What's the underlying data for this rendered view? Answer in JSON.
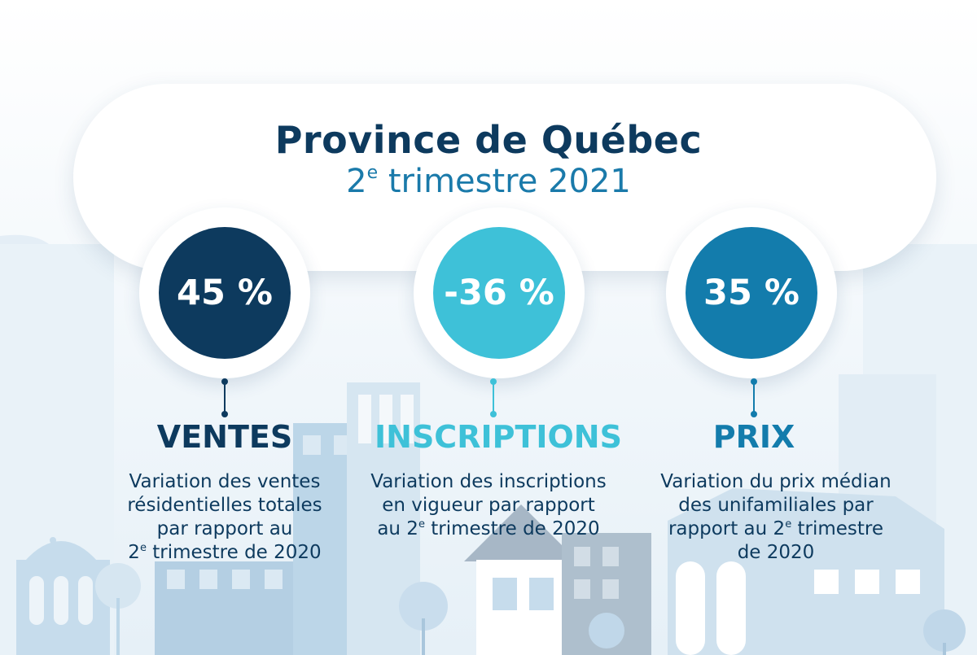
{
  "header": {
    "title": "Province de Québec",
    "subtitle_ordinal": "2",
    "subtitle_sup": "e",
    "subtitle_rest": " trimestre 2021"
  },
  "colors": {
    "navy": "#0d3a5e",
    "cyan": "#3ec1d8",
    "blue": "#137cac",
    "text": "#0d3a5e"
  },
  "indicators": [
    {
      "value": "45 %",
      "label": "VENTES",
      "desc_lines": [
        "Variation des ventes",
        "résidentielles totales",
        "par rapport au"
      ],
      "desc_last_pre": "2",
      "desc_last_sup": "e",
      "desc_last_post": " trimestre de 2020"
    },
    {
      "value": "-36 %",
      "label": "INSCRIPTIONS",
      "desc_lines": [
        "Variation des inscriptions",
        "en vigueur par rapport"
      ],
      "desc_last_pre": "au 2",
      "desc_last_sup": "e",
      "desc_last_post": " trimestre de 2020"
    },
    {
      "value": "35 %",
      "label": "PRIX",
      "desc_lines": [
        "Variation du prix médian",
        "des unifamiliales par"
      ],
      "desc_last_pre": "rapport au 2",
      "desc_last_sup": "e",
      "desc_last_post": " trimestre",
      "desc_extra": "de 2020"
    }
  ]
}
